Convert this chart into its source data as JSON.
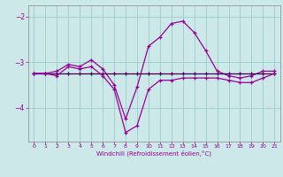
{
  "x": [
    0,
    1,
    2,
    3,
    4,
    5,
    6,
    7,
    8,
    9,
    10,
    11,
    12,
    13,
    14,
    15,
    16,
    17,
    18,
    19,
    20,
    21
  ],
  "line1": [
    -3.25,
    -3.25,
    -3.2,
    -3.05,
    -3.1,
    -2.95,
    -3.15,
    -3.5,
    -4.25,
    -3.55,
    -2.65,
    -2.45,
    -2.15,
    -2.1,
    -2.35,
    -2.75,
    -3.2,
    -3.3,
    -3.35,
    -3.3,
    -3.2,
    -3.2
  ],
  "line2": [
    -3.25,
    -3.25,
    -3.25,
    -3.25,
    -3.25,
    -3.25,
    -3.25,
    -3.25,
    -3.25,
    -3.25,
    -3.25,
    -3.25,
    -3.25,
    -3.25,
    -3.25,
    -3.25,
    -3.25,
    -3.25,
    -3.25,
    -3.25,
    -3.25,
    -3.25
  ],
  "line3": [
    -3.25,
    -3.25,
    -3.3,
    -3.1,
    -3.15,
    -3.1,
    -3.3,
    -3.6,
    -4.55,
    -4.4,
    -3.6,
    -3.4,
    -3.4,
    -3.35,
    -3.35,
    -3.35,
    -3.35,
    -3.4,
    -3.45,
    -3.45,
    -3.35,
    -3.25
  ],
  "line1_color": "#990099",
  "line2_color": "#440055",
  "line3_color": "#990099",
  "bg_color": "#cce8e8",
  "grid_color": "#99cccc",
  "xlabel": "Windchill (Refroidissement éolien,°C)",
  "xlabel_color": "#990099",
  "tick_color": "#990099",
  "ylim": [
    -4.75,
    -1.75
  ],
  "xlim": [
    -0.5,
    21.5
  ],
  "yticks": [
    -4,
    -3,
    -2
  ],
  "xticks": [
    0,
    1,
    2,
    3,
    4,
    5,
    6,
    7,
    8,
    9,
    10,
    11,
    12,
    13,
    14,
    15,
    16,
    17,
    18,
    19,
    20,
    21
  ]
}
